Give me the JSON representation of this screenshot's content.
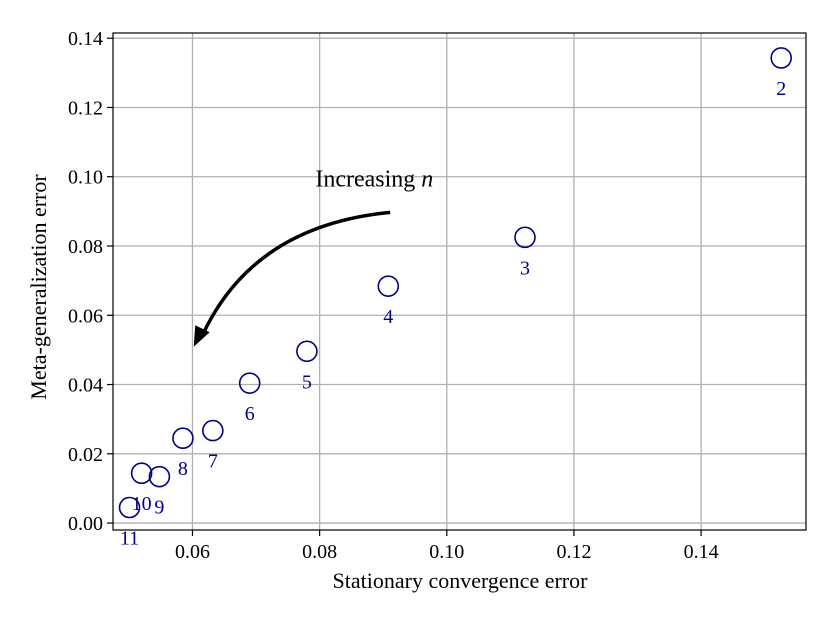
{
  "chart_data": {
    "type": "scatter",
    "title": "",
    "xlabel": "Stationary convergence error",
    "ylabel": "Meta-generalization error",
    "xlim": [
      0.0475,
      0.1565
    ],
    "ylim": [
      -0.002,
      0.1415
    ],
    "xticks": [
      0.06,
      0.08,
      0.1,
      0.12,
      0.14
    ],
    "xtick_labels": [
      "0.06",
      "0.08",
      "0.10",
      "0.12",
      "0.14"
    ],
    "yticks": [
      0.0,
      0.02,
      0.04,
      0.06,
      0.08,
      0.1,
      0.12,
      0.14
    ],
    "ytick_labels": [
      "0.00",
      "0.02",
      "0.04",
      "0.06",
      "0.08",
      "0.10",
      "0.12",
      "0.14"
    ],
    "grid": true,
    "marker": "open-circle",
    "marker_color": "#00008b",
    "points": [
      {
        "label": "2",
        "x": 0.1526,
        "y": 0.1343
      },
      {
        "label": "3",
        "x": 0.1123,
        "y": 0.0825
      },
      {
        "label": "4",
        "x": 0.0908,
        "y": 0.0684
      },
      {
        "label": "5",
        "x": 0.078,
        "y": 0.0496
      },
      {
        "label": "6",
        "x": 0.069,
        "y": 0.0404
      },
      {
        "label": "7",
        "x": 0.0632,
        "y": 0.0267
      },
      {
        "label": "8",
        "x": 0.0585,
        "y": 0.0245
      },
      {
        "label": "9",
        "x": 0.0548,
        "y": 0.0134
      },
      {
        "label": "10",
        "x": 0.052,
        "y": 0.0144
      },
      {
        "label": "11",
        "x": 0.0501,
        "y": 0.0045
      }
    ],
    "annotation": {
      "text": "Increasing",
      "text_var": "n",
      "text_x": 0.0886,
      "text_y": 0.0972,
      "arrow_from": [
        0.0911,
        0.0897
      ],
      "arrow_to": [
        0.0602,
        0.0509
      ]
    }
  }
}
